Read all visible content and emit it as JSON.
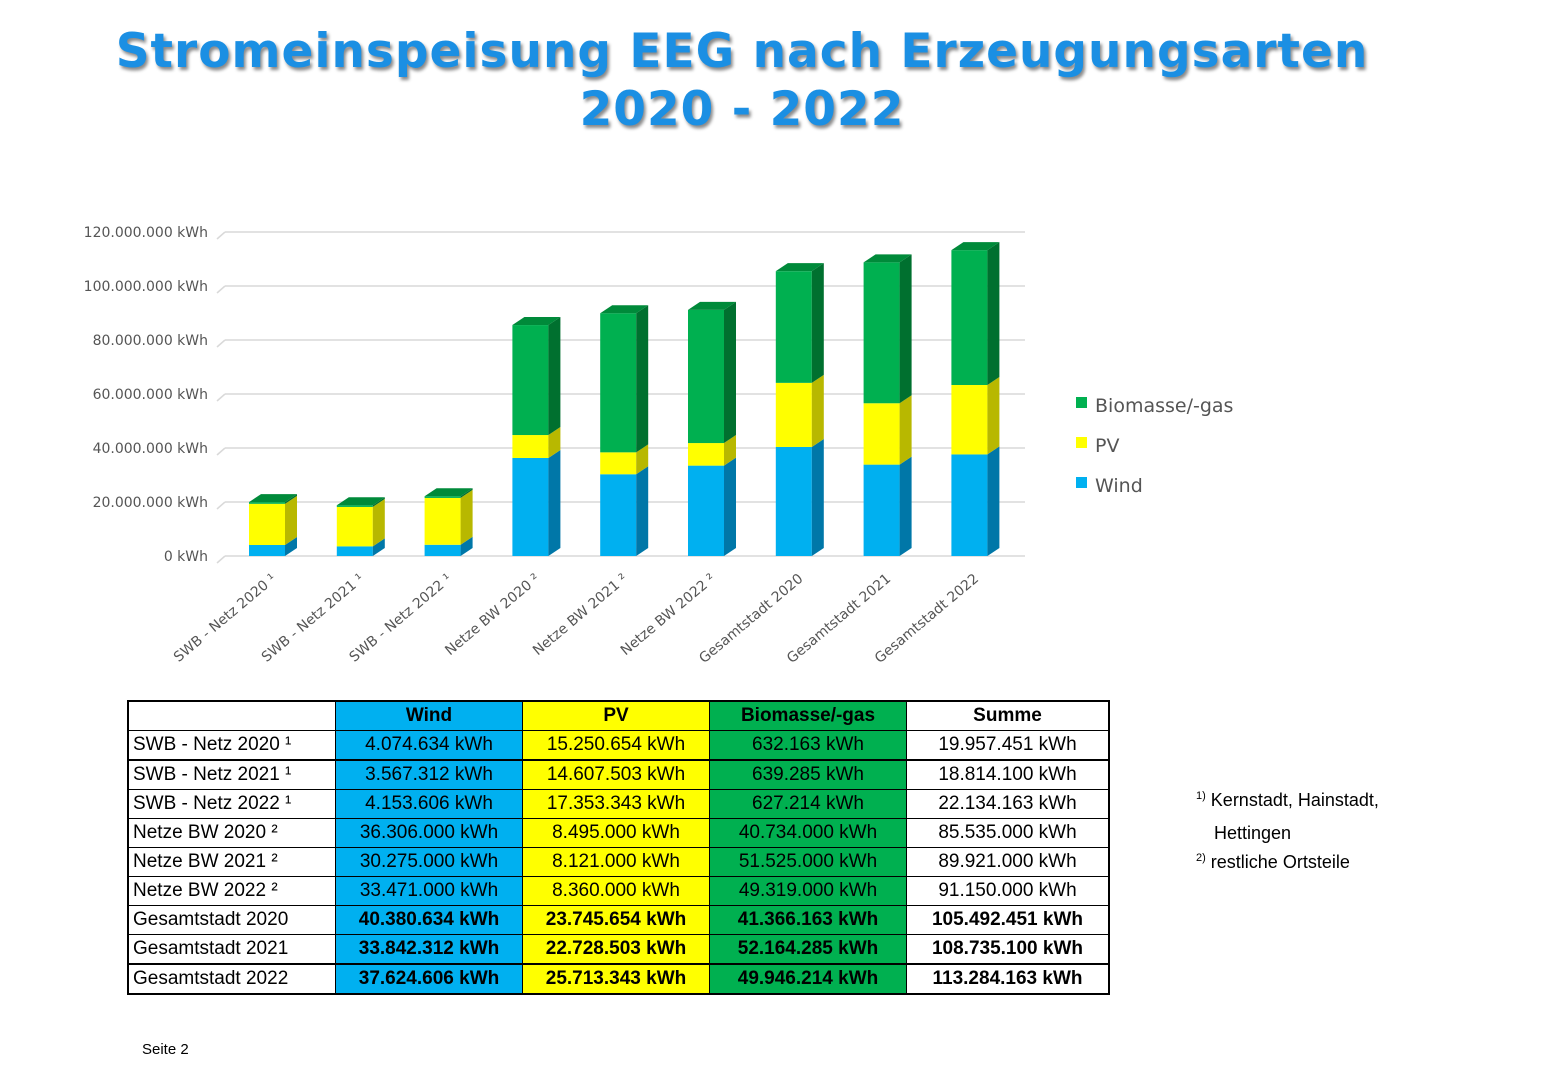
{
  "title_line1": "Stromeinspeisung EEG nach Erzeugungsarten",
  "title_line2": "2020 - 2022",
  "chart_data": {
    "type": "bar",
    "stacked": true,
    "categories": [
      "SWB - Netz 2020 ¹",
      "SWB - Netz 2021 ¹",
      "SWB - Netz 2022 ¹",
      "Netze BW 2020 ²",
      "Netze BW 2021 ²",
      "Netze BW 2022 ²",
      "Gesamtstadt 2020",
      "Gesamtstadt 2021",
      "Gesamtstadt 2022"
    ],
    "series": [
      {
        "name": "Wind",
        "color": "#00b0f0",
        "values": [
          4074634,
          3567312,
          4153606,
          36306000,
          30275000,
          33471000,
          40380634,
          33842312,
          37624606
        ]
      },
      {
        "name": "PV",
        "color": "#ffff00",
        "values": [
          15250654,
          14607503,
          17353343,
          8495000,
          8121000,
          8360000,
          23745654,
          22728503,
          25713343
        ]
      },
      {
        "name": "Biomasse/-gas",
        "color": "#00b050",
        "values": [
          632163,
          639285,
          627214,
          40734000,
          51525000,
          49319000,
          41366163,
          52164285,
          49946214
        ]
      }
    ],
    "yticks": [
      "0 kWh",
      "20.000.000 kWh",
      "40.000.000 kWh",
      "60.000.000 kWh",
      "80.000.000 kWh",
      "100.000.000 kWh",
      "120.000.000 kWh"
    ],
    "ylim": [
      0,
      120000000
    ],
    "legend": [
      "Biomasse/-gas",
      "PV",
      "Wind"
    ],
    "legend_position": "right",
    "grid": true
  },
  "table": {
    "headers": [
      "",
      "Wind",
      "PV",
      "Biomasse/-gas",
      "Summe"
    ],
    "rows": [
      [
        "SWB - Netz 2020 ¹",
        "4.074.634  kWh",
        "15.250.654  kWh",
        "632.163  kWh",
        "19.957.451  kWh"
      ],
      [
        "SWB - Netz 2021 ¹",
        "3.567.312  kWh",
        "14.607.503  kWh",
        "639.285  kWh",
        "18.814.100  kWh"
      ],
      [
        "SWB - Netz 2022 ¹",
        "4.153.606  kWh",
        "17.353.343  kWh",
        "627.214  kWh",
        "22.134.163  kWh"
      ],
      [
        "Netze BW 2020 ²",
        "36.306.000  kWh",
        "8.495.000  kWh",
        "40.734.000  kWh",
        "85.535.000  kWh"
      ],
      [
        "Netze BW 2021 ²",
        "30.275.000  kWh",
        "8.121.000  kWh",
        "51.525.000  kWh",
        "89.921.000  kWh"
      ],
      [
        "Netze BW 2022 ²",
        "33.471.000  kWh",
        "8.360.000  kWh",
        "49.319.000  kWh",
        "91.150.000  kWh"
      ],
      [
        "Gesamtstadt 2020",
        "40.380.634  kWh",
        "23.745.654  kWh",
        "41.366.163  kWh",
        "105.492.451  kWh"
      ],
      [
        "Gesamtstadt 2021",
        "33.842.312  kWh",
        "22.728.503  kWh",
        "52.164.285  kWh",
        "108.735.100  kWh"
      ],
      [
        "Gesamtstadt 2022",
        "37.624.606  kWh",
        "25.713.343  kWh",
        "49.946.214  kWh",
        "113.284.163  kWh"
      ]
    ]
  },
  "footnotes": {
    "fn1_mark": "1)",
    "fn1_text": "Kernstadt, Hainstadt,",
    "fn1_text2": "Hettingen",
    "fn2_mark": "2)",
    "fn2_text": "restliche Ortsteile"
  },
  "page_label": "Seite 2"
}
